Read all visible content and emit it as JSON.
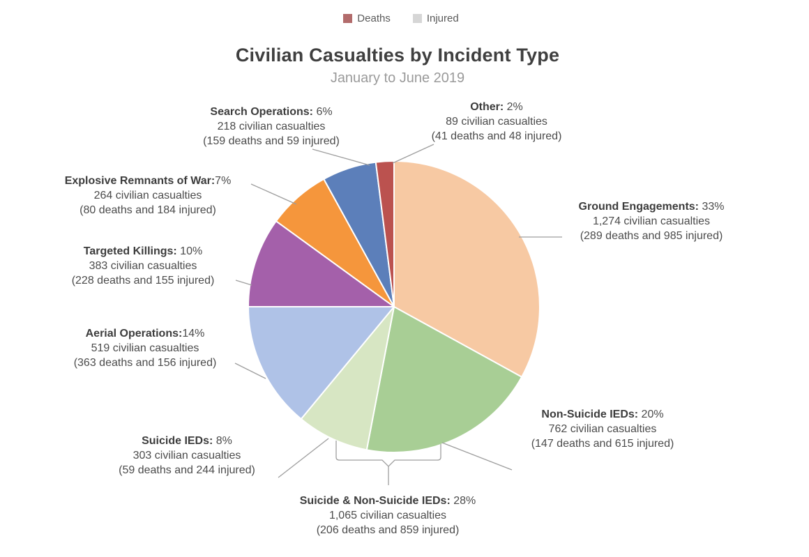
{
  "header": {
    "title": "Civilian Casualties by Incident Type",
    "subtitle": "January to June 2019"
  },
  "legend": {
    "items": [
      {
        "label": "Deaths",
        "color": "#b26b6b"
      },
      {
        "label": "Injured",
        "color": "#d6d6d6"
      }
    ]
  },
  "chart_data": {
    "type": "pie",
    "title": "Civilian Casualties by Incident Type",
    "subtitle": "January to June 2019",
    "legend": [
      "Deaths",
      "Injured"
    ],
    "direction": "clockwise",
    "start_angle_deg": 0,
    "slices": [
      {
        "label": "Ground Engagements",
        "pct": 33,
        "casualties": 1274,
        "deaths": 289,
        "injured": 985,
        "color": "#f7c9a3"
      },
      {
        "label": "Non-Suicide IEDs",
        "pct": 20,
        "casualties": 762,
        "deaths": 147,
        "injured": 615,
        "color": "#a8ce95"
      },
      {
        "label": "Suicide IEDs",
        "pct": 8,
        "casualties": 303,
        "deaths": 59,
        "injured": 244,
        "color": "#d7e6c3"
      },
      {
        "label": "Aerial Operations",
        "pct": 14,
        "casualties": 519,
        "deaths": 363,
        "injured": 156,
        "color": "#afc2e7"
      },
      {
        "label": "Targeted Killings",
        "pct": 10,
        "casualties": 383,
        "deaths": 228,
        "injured": 155,
        "color": "#a460aa"
      },
      {
        "label": "Explosive Remnants of War",
        "pct": 7,
        "casualties": 264,
        "deaths": 80,
        "injured": 184,
        "color": "#f5963c"
      },
      {
        "label": "Search Operations",
        "pct": 6,
        "casualties": 218,
        "deaths": 159,
        "injured": 59,
        "color": "#5c7fba"
      },
      {
        "label": "Other",
        "pct": 2,
        "casualties": 89,
        "deaths": 41,
        "injured": 48,
        "color": "#bb524f"
      }
    ],
    "grouped_annotation": {
      "label": "Suicide & Non-Suicide IEDs",
      "pct": 28,
      "casualties": 1065,
      "deaths": 206,
      "injured": 859
    }
  },
  "callouts": {
    "search": {
      "name": "Search Operations:",
      "pct": " 6%",
      "casualties": "218 civilian casualties",
      "detail": "(159 deaths and 59 injured)"
    },
    "other": {
      "name": "Other:",
      "pct": " 2%",
      "casualties": "89 civilian casualties",
      "detail": "(41 deaths and 48 injured)"
    },
    "ground": {
      "name": "Ground Engagements:",
      "pct": " 33%",
      "casualties": "1,274 civilian casualties",
      "detail": "(289 deaths and 985 injured)"
    },
    "erw": {
      "name": "Explosive Remnants of War:",
      "pct": "7%",
      "casualties": "264 civilian casualties",
      "detail": "(80 deaths and 184 injured)"
    },
    "targeted": {
      "name": "Targeted Killings:",
      "pct": " 10%",
      "casualties": "383 civilian casualties",
      "detail": "(228 deaths and 155 injured)"
    },
    "aerial": {
      "name": "Aerial Operations:",
      "pct": "14%",
      "casualties": "519 civilian casualties",
      "detail": "(363 deaths and 156 injured)"
    },
    "suicide": {
      "name": "Suicide IEDs:",
      "pct": " 8%",
      "casualties": "303 civilian casualties",
      "detail": "(59 deaths and 244 injured)"
    },
    "nonsuicide": {
      "name": "Non-Suicide IEDs:",
      "pct": " 20%",
      "casualties": "762 civilian casualties",
      "detail": "(147 deaths and 615 injured)"
    },
    "combo": {
      "name": "Suicide & Non-Suicide IEDs:",
      "pct": " 28%",
      "casualties": "1,065 civilian casualties",
      "detail": "(206 deaths and 859 injured)"
    }
  }
}
